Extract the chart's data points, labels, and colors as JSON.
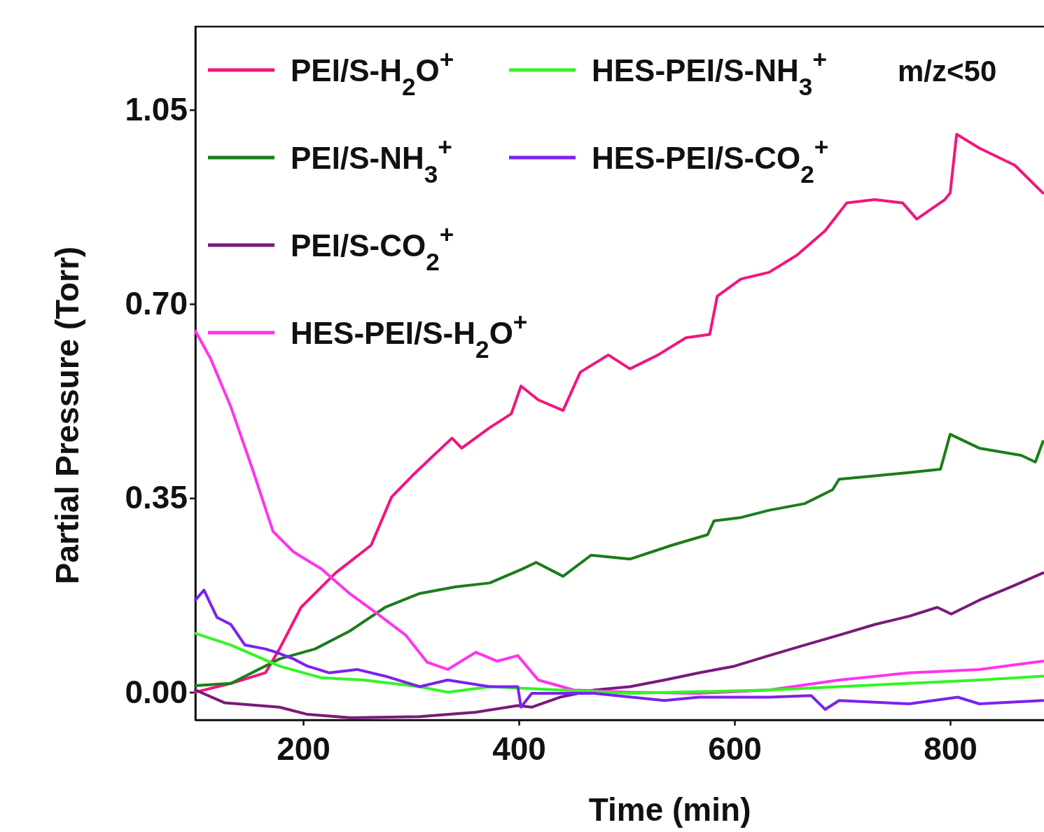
{
  "chart_data": {
    "type": "line",
    "xlabel": "Time (min)",
    "ylabel": "Partial Pressure (Torr)",
    "xlim": [
      100,
      887
    ],
    "ylim": [
      -0.05,
      1.2
    ],
    "xticks": [
      200,
      400,
      600,
      800
    ],
    "yticks": [
      {
        "value": 0,
        "label": "0.00"
      },
      {
        "value": 0.35,
        "label": "0.35"
      },
      {
        "value": 0.7,
        "label": "0.70"
      },
      {
        "value": 1.05,
        "label": "1.05"
      }
    ],
    "legend": "top left",
    "grid": false,
    "line_style": "solid",
    "marker": "none",
    "annotations": [
      "m/z<50"
    ],
    "series": [
      {
        "name": "PEI/S-H$_{2}$O$^{+}$",
        "color": "#f2157c",
        "x": [
          100,
          133,
          165,
          178,
          198,
          230,
          263,
          282,
          301,
          321,
          338,
          347,
          373,
          393,
          402,
          418,
          441,
          457,
          483,
          503,
          529,
          555,
          577,
          584,
          606,
          632,
          658,
          684,
          704,
          730,
          756,
          769,
          795,
          800,
          806,
          827,
          860,
          886
        ],
        "values": [
          0,
          0.016,
          0.035,
          0.078,
          0.153,
          0.215,
          0.265,
          0.352,
          0.39,
          0.427,
          0.458,
          0.44,
          0.477,
          0.502,
          0.552,
          0.527,
          0.508,
          0.577,
          0.608,
          0.583,
          0.608,
          0.639,
          0.645,
          0.714,
          0.745,
          0.757,
          0.788,
          0.832,
          0.882,
          0.888,
          0.882,
          0.853,
          0.888,
          0.9,
          1.006,
          0.981,
          0.95,
          0.9
        ]
      },
      {
        "name": "PEI/S-NH$_{3}$$^{+}$",
        "color": "#1b7d1b",
        "x": [
          100,
          133,
          178,
          211,
          243,
          276,
          308,
          341,
          373,
          403,
          416,
          441,
          467,
          503,
          542,
          575,
          581,
          606,
          632,
          665,
          691,
          697,
          730,
          762,
          791,
          800,
          827,
          866,
          879,
          886
        ],
        "values": [
          0.012,
          0.016,
          0.06,
          0.078,
          0.11,
          0.153,
          0.178,
          0.19,
          0.197,
          0.222,
          0.234,
          0.209,
          0.247,
          0.24,
          0.265,
          0.284,
          0.309,
          0.315,
          0.328,
          0.34,
          0.365,
          0.384,
          0.39,
          0.396,
          0.402,
          0.465,
          0.44,
          0.427,
          0.415,
          0.452
        ]
      },
      {
        "name": "PEI/S-CO$_{2}$$^{+}$",
        "color": "#7a1a7a",
        "x": [
          100,
          127,
          178,
          204,
          243,
          308,
          360,
          399,
          412,
          438,
          470,
          503,
          535,
          567,
          600,
          632,
          665,
          697,
          730,
          762,
          788,
          801,
          827,
          860,
          886
        ],
        "values": [
          0.004,
          -0.019,
          -0.027,
          -0.04,
          -0.046,
          -0.044,
          -0.036,
          -0.024,
          -0.027,
          -0.009,
          0.004,
          0.01,
          0.022,
          0.035,
          0.047,
          0.066,
          0.085,
          0.103,
          0.122,
          0.137,
          0.153,
          0.141,
          0.166,
          0.193,
          0.215
        ]
      },
      {
        "name": "HES-PEI/S-H$_{2}$O$^{+}$",
        "color": "#ff33ee",
        "x": [
          100,
          114,
          133,
          153,
          172,
          191,
          217,
          243,
          269,
          295,
          315,
          334,
          360,
          380,
          399,
          418,
          451,
          503,
          567,
          632,
          697,
          762,
          827,
          886
        ],
        "values": [
          0.651,
          0.602,
          0.514,
          0.402,
          0.29,
          0.253,
          0.222,
          0.178,
          0.141,
          0.103,
          0.054,
          0.041,
          0.072,
          0.056,
          0.066,
          0.022,
          0.004,
          0,
          -0.002,
          0.004,
          0.022,
          0.035,
          0.041,
          0.056
        ]
      },
      {
        "name": "HES-PEI/S-NH$_{3}$$^{+}$",
        "color": "#33f522",
        "x": [
          100,
          133,
          178,
          217,
          256,
          308,
          334,
          373,
          438,
          503,
          567,
          632,
          697,
          762,
          827,
          886
        ],
        "values": [
          0.106,
          0.085,
          0.047,
          0.026,
          0.022,
          0.01,
          0,
          0.01,
          0.004,
          -0.002,
          0.001,
          0.004,
          0.01,
          0.016,
          0.022,
          0.029
        ]
      },
      {
        "name": "HES-PEI/S-CO$_{2}$$^{+}$",
        "color": "#7b22ee",
        "x": [
          100,
          108,
          120,
          133,
          146,
          165,
          175,
          191,
          204,
          224,
          250,
          276,
          308,
          334,
          373,
          399,
          402,
          412,
          470,
          535,
          567,
          632,
          671,
          684,
          697,
          762,
          807,
          827,
          886
        ],
        "values": [
          0.166,
          0.184,
          0.135,
          0.122,
          0.085,
          0.078,
          0.072,
          0.06,
          0.047,
          0.035,
          0.041,
          0.029,
          0.01,
          0.022,
          0.01,
          0.01,
          -0.027,
          -0.002,
          -0.002,
          -0.015,
          -0.009,
          -0.009,
          -0.006,
          -0.031,
          -0.015,
          -0.021,
          -0.009,
          -0.021,
          -0.015
        ]
      }
    ]
  }
}
